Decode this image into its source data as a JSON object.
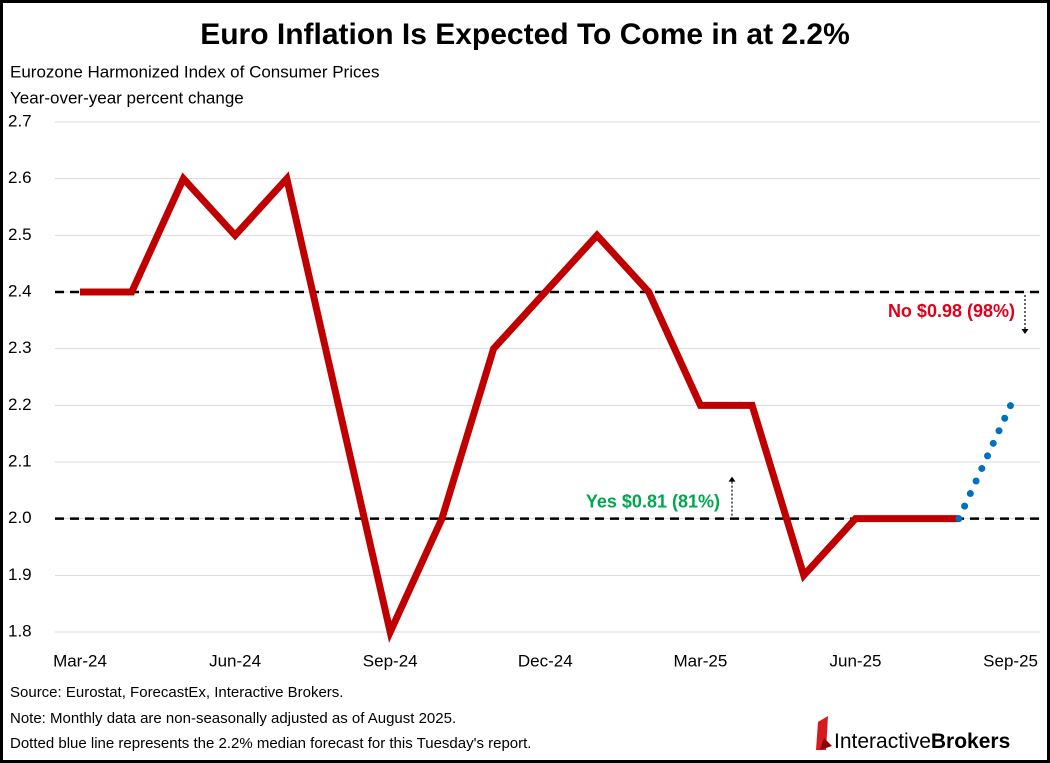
{
  "chart_data": {
    "type": "line",
    "title": "Euro Inflation Is Expected To Come in at 2.2%",
    "subtitle": [
      "Eurozone Harmonized Index of Consumer Prices",
      "Year-over-year percent change"
    ],
    "categories": [
      "Mar-24",
      null,
      null,
      "Jun-24",
      null,
      null,
      "Sep-24",
      null,
      null,
      "Dec-24",
      null,
      null,
      "Mar-25",
      null,
      null,
      "Jun-25",
      null,
      null,
      "Sep-25"
    ],
    "series": [
      {
        "color": "#c00000",
        "style": "solid",
        "values": [
          2.4,
          2.4,
          2.6,
          2.5,
          2.6,
          2.2,
          1.8,
          2.0,
          2.3,
          2.4,
          2.5,
          2.4,
          2.2,
          2.2,
          1.9,
          2.0,
          2.0,
          2.0,
          null
        ]
      },
      {
        "color": "#0070c0",
        "style": "dotted",
        "values": [
          null,
          null,
          null,
          null,
          null,
          null,
          null,
          null,
          null,
          null,
          null,
          null,
          null,
          null,
          null,
          null,
          null,
          2.0,
          2.2
        ]
      }
    ],
    "ylim": [
      1.8,
      2.7
    ],
    "yticks": [
      1.8,
      1.9,
      {
        "value": 2.0,
        "label": "2.0"
      },
      2.1,
      2.2,
      2.3,
      2.4,
      2.5,
      2.6,
      2.7
    ],
    "grid": true,
    "hlines": [
      {
        "value": 2.4,
        "label": "No $0.98 (98%)",
        "color": "#e0001b"
      },
      {
        "value": 2.0,
        "label": "Yes $0.81 (81%)",
        "color": "#00a650"
      }
    ],
    "notes": [
      "Source: Eurostat, ForecastEx, Interactive Brokers.",
      "Note: Monthly data are non-seasonally adjusted as of August 2025.",
      "Dotted blue line represents the 2.2% median forecast for this Tuesday's report."
    ],
    "logo": [
      "Interactive",
      "Brokers"
    ]
  }
}
